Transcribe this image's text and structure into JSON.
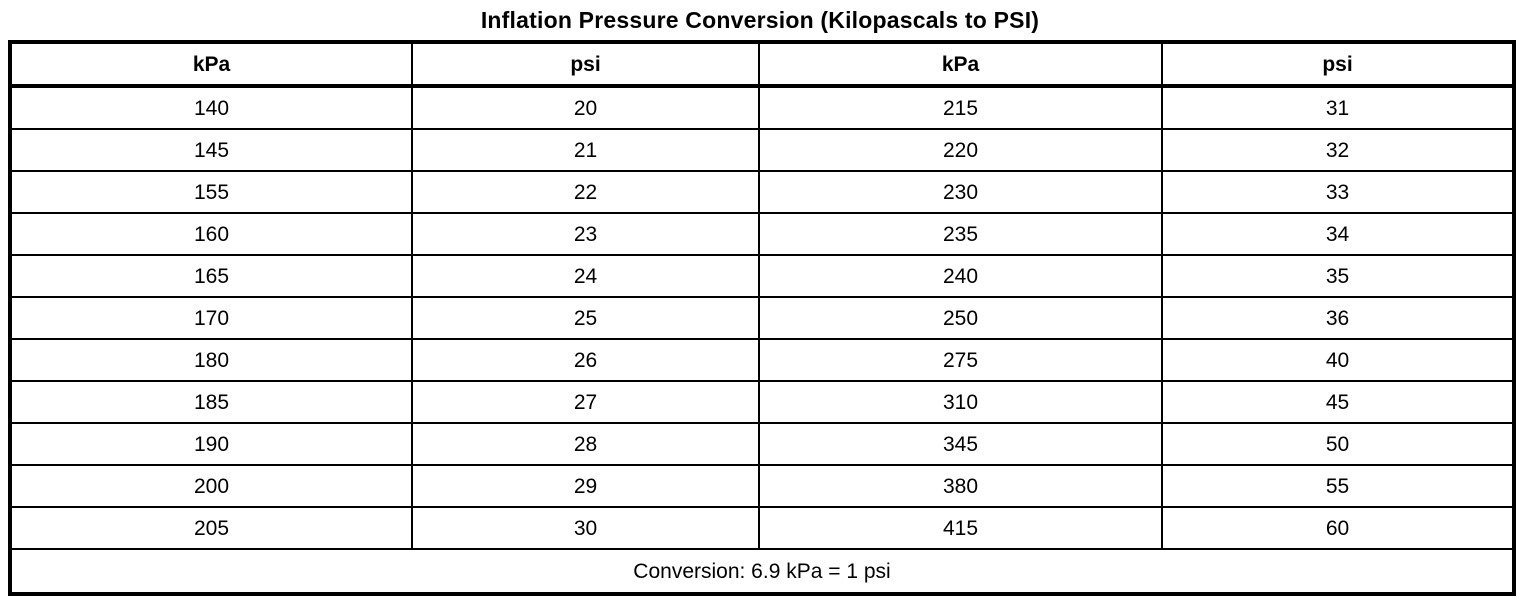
{
  "title": "Inflation Pressure Conversion (Kilopascals to PSI)",
  "table": {
    "columns": [
      "kPa",
      "psi",
      "kPa",
      "psi"
    ],
    "rows": [
      [
        "140",
        "20",
        "215",
        "31"
      ],
      [
        "145",
        "21",
        "220",
        "32"
      ],
      [
        "155",
        "22",
        "230",
        "33"
      ],
      [
        "160",
        "23",
        "235",
        "34"
      ],
      [
        "165",
        "24",
        "240",
        "35"
      ],
      [
        "170",
        "25",
        "250",
        "36"
      ],
      [
        "180",
        "26",
        "275",
        "40"
      ],
      [
        "185",
        "27",
        "310",
        "45"
      ],
      [
        "190",
        "28",
        "345",
        "50"
      ],
      [
        "200",
        "29",
        "380",
        "55"
      ],
      [
        "205",
        "30",
        "415",
        "60"
      ]
    ],
    "footer": "Conversion: 6.9 kPa = 1 psi"
  },
  "colors": {
    "text": "#000000",
    "border": "#000000",
    "background": "#ffffff"
  }
}
